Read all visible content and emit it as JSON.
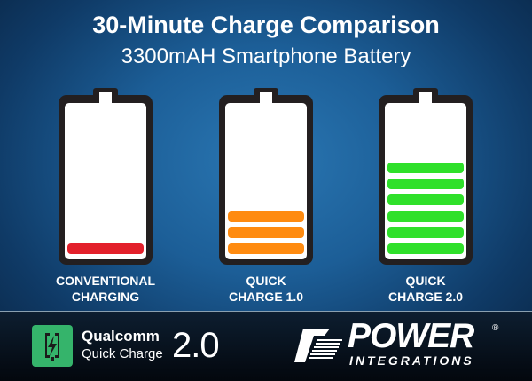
{
  "header": {
    "title": "30-Minute Charge Comparison",
    "subtitle": "3300mAH Smartphone Battery"
  },
  "batteries": [
    {
      "label_line1": "CONVENTIONAL",
      "label_line2": "CHARGING",
      "level_bars": 1,
      "color": "#e3202b"
    },
    {
      "label_line1": "QUICK",
      "label_line2": "CHARGE 1.0",
      "level_bars": 3,
      "color": "#ff8b10"
    },
    {
      "label_line1": "QUICK",
      "label_line2": "CHARGE 2.0",
      "level_bars": 6,
      "color": "#2fe02a"
    }
  ],
  "footer": {
    "qualcomm": {
      "brand": "Qualcomm",
      "product": "Quick Charge",
      "version": "2.0",
      "icon": "lightning-phone-icon",
      "color": "#35b46b"
    },
    "power_integrations": {
      "line1": "POWER",
      "line2": "INTEGRATIONS",
      "registered": "®"
    }
  }
}
